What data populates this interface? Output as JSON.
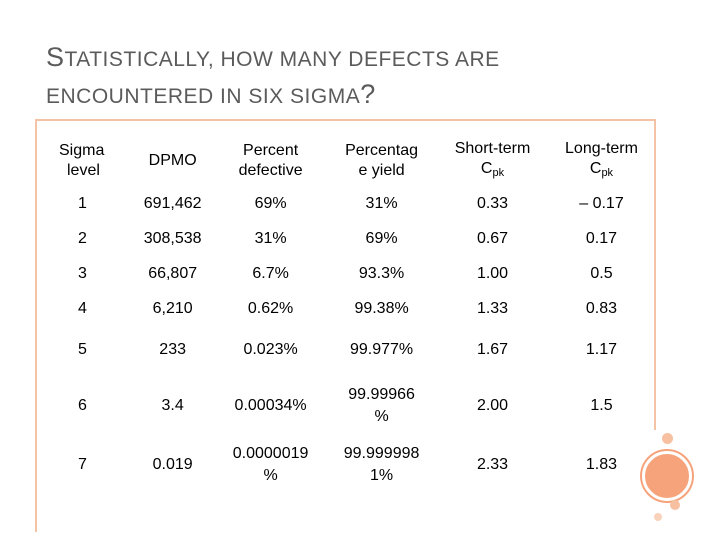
{
  "slide": {
    "title_line1_cap": "S",
    "title_line1_rest": "TATISTICALLY, HOW MANY DEFECTS ARE",
    "title_line2_rest": "ENCOUNTERED IN SIX SIGMA",
    "title_line2_end": "?"
  },
  "table": {
    "headers": {
      "sigma_a": "Sigma",
      "sigma_b": "level",
      "dpmo": "DPMO",
      "defective_a": "Percent",
      "defective_b": "defective",
      "yield_a": "Percentag",
      "yield_b": "e yield",
      "short_a": "Short-term",
      "short_b": "C",
      "short_sub": "pk",
      "long_a": "Long-term",
      "long_b": "C",
      "long_sub": "pk"
    },
    "rows": [
      {
        "sigma": "1",
        "dpmo": "691,462",
        "defective": "69%",
        "yield": "31%",
        "short": "0.33",
        "long": "– 0.17"
      },
      {
        "sigma": "2",
        "dpmo": "308,538",
        "defective": "31%",
        "yield": "69%",
        "short": "0.67",
        "long": "0.17"
      },
      {
        "sigma": "3",
        "dpmo": "66,807",
        "defective": "6.7%",
        "yield": "93.3%",
        "short": "1.00",
        "long": "0.5"
      },
      {
        "sigma": "4",
        "dpmo": "6,210",
        "defective": "0.62%",
        "yield": "99.38%",
        "short": "1.33",
        "long": "0.83"
      },
      {
        "sigma": "5",
        "dpmo": "233",
        "defective": "0.023%",
        "yield": "99.977%",
        "short": "1.67",
        "long": "1.17"
      },
      {
        "sigma": "6",
        "dpmo": "3.4",
        "defective": "0.00034%",
        "yield_a": "99.99966",
        "yield_b": "%",
        "short": "2.00",
        "long": "1.5"
      },
      {
        "sigma": "7",
        "dpmo": "0.019",
        "defective_a": "0.0000019",
        "defective_b": "%",
        "yield_a": "99.999998",
        "yield_b": "1%",
        "short": "2.33",
        "long": "1.83"
      }
    ]
  },
  "colors": {
    "accent": "#f6a27a",
    "border": "#f4c3a6",
    "title": "#5b5b5b"
  }
}
